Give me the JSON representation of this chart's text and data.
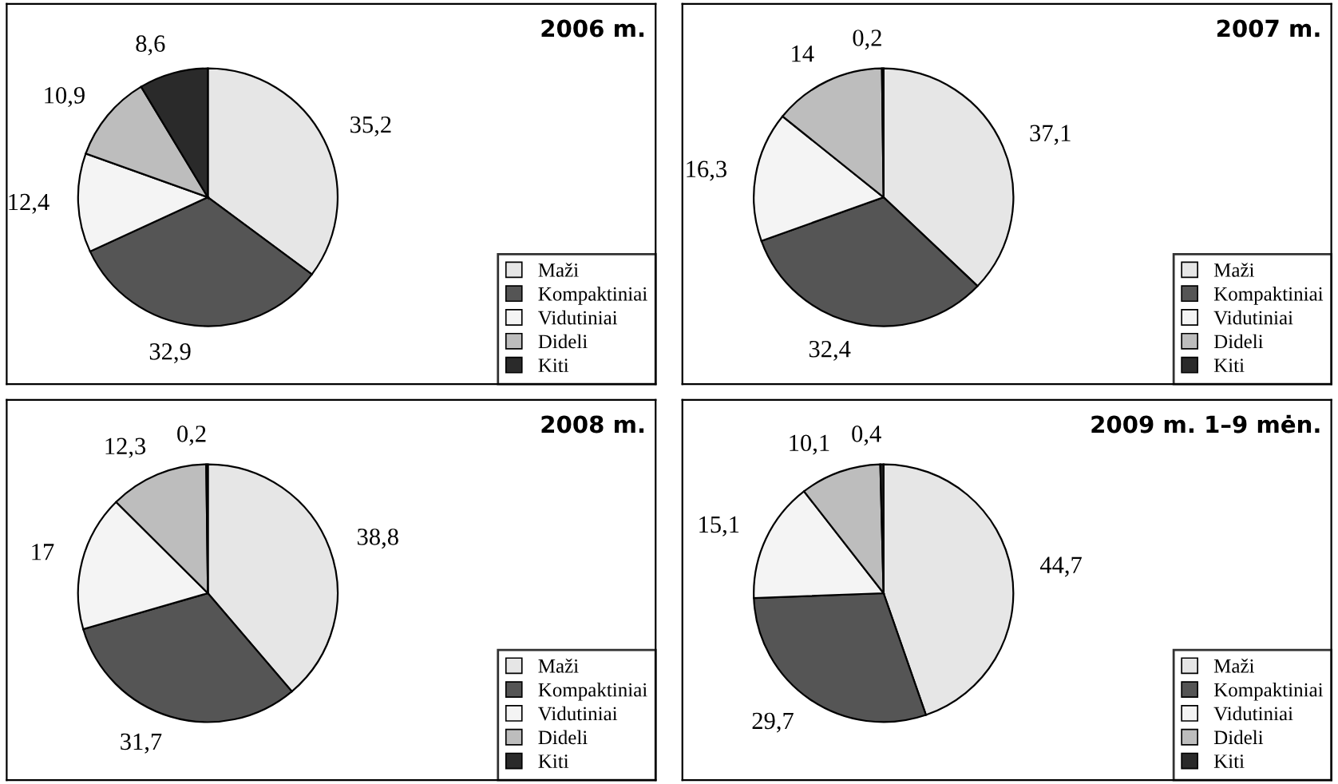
{
  "chart_data": [
    {
      "type": "pie",
      "title": "2006 m.",
      "categories": [
        "Maži",
        "Kompaktiniai",
        "Vidutiniai",
        "Dideli",
        "Kiti"
      ],
      "values": [
        35.2,
        32.9,
        12.4,
        10.9,
        8.6
      ],
      "value_labels": [
        "35,2",
        "32,9",
        "12,4",
        "10,9",
        "8,6"
      ],
      "colors": [
        "#e6e6e6",
        "#555555",
        "#f4f4f4",
        "#bdbdbd",
        "#2a2a2a"
      ],
      "legend": "bottom right"
    },
    {
      "type": "pie",
      "title": "2007 m.",
      "categories": [
        "Maži",
        "Kompaktiniai",
        "Vidutiniai",
        "Dideli",
        "Kiti"
      ],
      "values": [
        37.1,
        32.4,
        16.3,
        14,
        0.2
      ],
      "value_labels": [
        "37,1",
        "32,4",
        "16,3",
        "14",
        "0,2"
      ],
      "colors": [
        "#e6e6e6",
        "#555555",
        "#f4f4f4",
        "#bdbdbd",
        "#2a2a2a"
      ],
      "legend": "bottom right"
    },
    {
      "type": "pie",
      "title": "2008 m.",
      "categories": [
        "Maži",
        "Kompaktiniai",
        "Vidutiniai",
        "Dideli",
        "Kiti"
      ],
      "values": [
        38.8,
        31.7,
        17,
        12.3,
        0.2
      ],
      "value_labels": [
        "38,8",
        "31,7",
        "17",
        "12,3",
        "0,2"
      ],
      "colors": [
        "#e6e6e6",
        "#555555",
        "#f4f4f4",
        "#bdbdbd",
        "#2a2a2a"
      ],
      "legend": "bottom right"
    },
    {
      "type": "pie",
      "title": "2009 m. 1–9 mėn.",
      "categories": [
        "Maži",
        "Kompaktiniai",
        "Vidutiniai",
        "Dideli",
        "Kiti"
      ],
      "values": [
        44.7,
        29.7,
        15.1,
        10.1,
        0.4
      ],
      "value_labels": [
        "44,7",
        "29,7",
        "15,1",
        "10,1",
        "0,4"
      ],
      "colors": [
        "#e6e6e6",
        "#555555",
        "#f4f4f4",
        "#bdbdbd",
        "#2a2a2a"
      ],
      "legend": "bottom right"
    }
  ]
}
